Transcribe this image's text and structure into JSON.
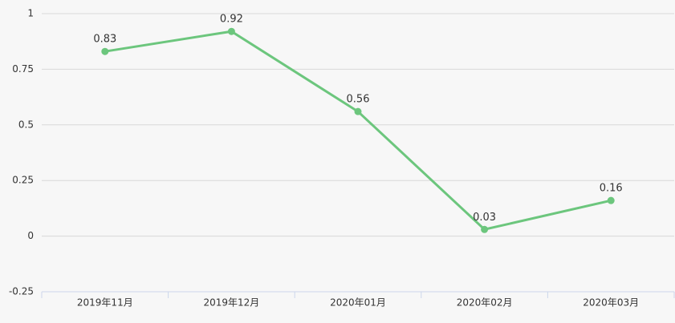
{
  "chart_data": {
    "type": "line",
    "categories": [
      "2019年11月",
      "2019年12月",
      "2020年01月",
      "2020年02月",
      "2020年03月"
    ],
    "values": [
      0.83,
      0.92,
      0.56,
      0.03,
      0.16
    ],
    "color": "#6cc67d",
    "ylim": [
      -0.25,
      1
    ],
    "yticks": [
      -0.25,
      0,
      0.25,
      0.5,
      0.75,
      1
    ],
    "grid": true
  }
}
